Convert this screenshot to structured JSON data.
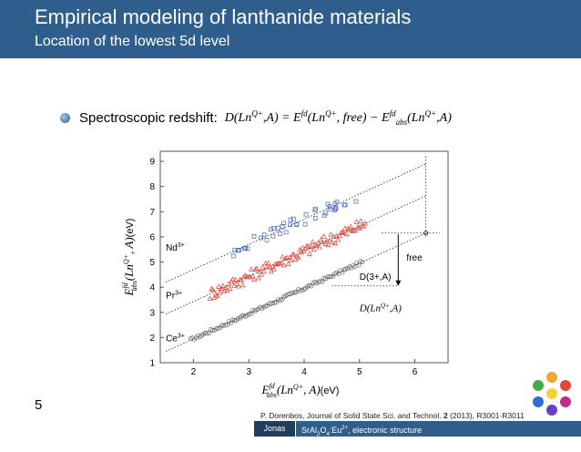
{
  "header": {
    "title": "Empirical modeling of lanthanide materials",
    "subtitle": "Location of the lowest 5d level"
  },
  "bullet": {
    "label": "Spectroscopic redshift:",
    "formula_lhs": "D(Ln",
    "formula_sup": "Q+",
    "formula_mid": ",A) = E",
    "formula_fd": "fd",
    "formula_rhs1": "(Ln",
    "formula_rhs2": ", free) − E",
    "formula_abs": "abs",
    "formula_end": ",A)"
  },
  "chart_data": {
    "type": "scatter",
    "xlabel": "E_abs^fd (Ln^Q+, A) (eV)",
    "ylabel": "E_abs^fd (Ln^Q+, A) (eV)",
    "xlim": [
      1.4,
      6.6
    ],
    "ylim": [
      1,
      9.4
    ],
    "xticks": [
      2,
      3,
      4,
      5,
      6
    ],
    "yticks": [
      1,
      2,
      3,
      4,
      5,
      6,
      7,
      8,
      9
    ],
    "series": [
      {
        "name": "Ce3+",
        "color": "#6a6a6a",
        "marker": "circle",
        "x_start": 1.95,
        "x_end": 5.05,
        "offset": 0.0
      },
      {
        "name": "Pr3+",
        "color": "#e0443a",
        "marker": "triangle",
        "x_start": 2.3,
        "x_end": 5.1,
        "offset": 1.48
      },
      {
        "name": "Nd3+",
        "color": "#4a5fc1",
        "marker": "square",
        "x_start": 2.7,
        "x_end": 5.0,
        "offset": 2.75
      }
    ],
    "lines": [
      {
        "name": "Ce3+ trend",
        "x1": 1.5,
        "x2": 6.2,
        "offset": 0.0
      },
      {
        "name": "Pr3+ trend",
        "x1": 1.5,
        "x2": 6.2,
        "offset": 1.48
      },
      {
        "name": "Nd3+ trend",
        "x1": 1.5,
        "x2": 6.2,
        "offset": 2.75
      }
    ],
    "annotations": {
      "nd_label": "Nd",
      "pr_label": "Pr",
      "ce_label": "Ce",
      "charge_sup": "3+",
      "free_label": "free",
      "d_label": "D(3+,A)",
      "d_formula": "D(Ln",
      "d_formula_sup": "Q+",
      "d_formula_end": ",A)",
      "x_unit": "(eV)",
      "y_unit": "(eV)"
    }
  },
  "footer": {
    "page_number": "5",
    "author": "Jonas Joos",
    "topic_main": "SrAl",
    "topic_sub1": "2",
    "topic_o": "O",
    "topic_sub2": "4",
    "topic_eu": ":Eu",
    "topic_sup": "2+",
    "topic_rest": ", electronic structure",
    "citation_pre": "P. Dorenbos, Journal of Solid State Sci. and Technol. ",
    "citation_vol": "2",
    "citation_post": " (2013), R3001-R3011"
  },
  "colors": {
    "header": "#2f5e8c",
    "footer_dark": "#1f3d5c",
    "ce": "#6a6a6a",
    "pr": "#e0443a",
    "nd": "#4a5fc1"
  }
}
